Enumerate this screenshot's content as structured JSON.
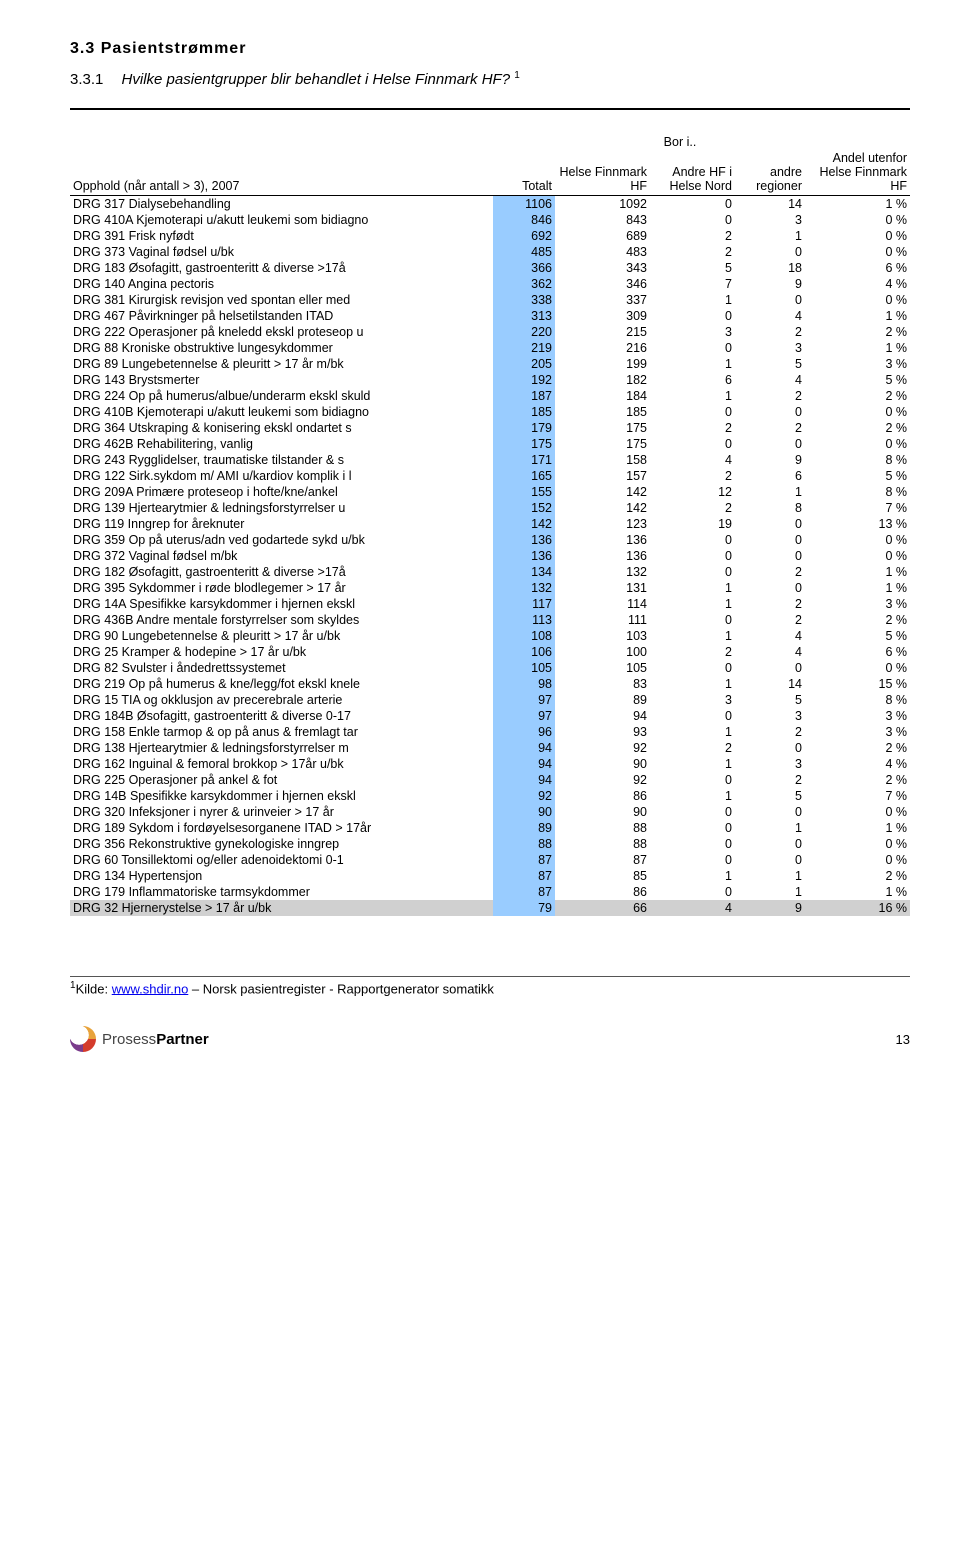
{
  "section_number": "3.3",
  "section_title": "Pasientstrømmer",
  "subsection_number": "3.3.1",
  "subsection_title": "Hvilke pasientgrupper blir behandlet i Helse Finnmark HF?",
  "subsection_footref": "1",
  "header": {
    "opphold": "Opphold (når antall > 3), 2007",
    "totalt": "Totalt",
    "bor_i": "Bor i..",
    "h1": "Helse Finnmark HF",
    "h2": "Andre HF i Helse Nord",
    "h3": "andre regioner",
    "andel": "Andel utenfor Helse Finnmark HF"
  },
  "rows": [
    {
      "label": "DRG 317 Dialysebehandling",
      "t": 1106,
      "a": 1092,
      "b": 0,
      "c": 14,
      "p": "1 %"
    },
    {
      "label": "DRG 410A Kjemoterapi u/akutt leukemi som bidiagno",
      "t": 846,
      "a": 843,
      "b": 0,
      "c": 3,
      "p": "0 %"
    },
    {
      "label": "DRG 391 Frisk nyfødt",
      "t": 692,
      "a": 689,
      "b": 2,
      "c": 1,
      "p": "0 %"
    },
    {
      "label": "DRG 373 Vaginal fødsel u/bk",
      "t": 485,
      "a": 483,
      "b": 2,
      "c": 0,
      "p": "0 %"
    },
    {
      "label": "DRG 183 Øsofagitt, gastroenteritt & diverse >17å",
      "t": 366,
      "a": 343,
      "b": 5,
      "c": 18,
      "p": "6 %"
    },
    {
      "label": "DRG 140 Angina pectoris",
      "t": 362,
      "a": 346,
      "b": 7,
      "c": 9,
      "p": "4 %"
    },
    {
      "label": "DRG 381 Kirurgisk revisjon ved spontan eller med",
      "t": 338,
      "a": 337,
      "b": 1,
      "c": 0,
      "p": "0 %"
    },
    {
      "label": "DRG 467 Påvirkninger på helsetilstanden ITAD",
      "t": 313,
      "a": 309,
      "b": 0,
      "c": 4,
      "p": "1 %"
    },
    {
      "label": "DRG 222 Operasjoner på kneledd ekskl proteseop u",
      "t": 220,
      "a": 215,
      "b": 3,
      "c": 2,
      "p": "2 %"
    },
    {
      "label": "DRG 88 Kroniske obstruktive lungesykdommer",
      "t": 219,
      "a": 216,
      "b": 0,
      "c": 3,
      "p": "1 %"
    },
    {
      "label": "DRG 89 Lungebetennelse & pleuritt > 17 år m/bk",
      "t": 205,
      "a": 199,
      "b": 1,
      "c": 5,
      "p": "3 %"
    },
    {
      "label": "DRG 143 Brystsmerter",
      "t": 192,
      "a": 182,
      "b": 6,
      "c": 4,
      "p": "5 %"
    },
    {
      "label": "DRG 224 Op på humerus/albue/underarm ekskl skuld",
      "t": 187,
      "a": 184,
      "b": 1,
      "c": 2,
      "p": "2 %"
    },
    {
      "label": "DRG 410B Kjemoterapi u/akutt leukemi som bidiagno",
      "t": 185,
      "a": 185,
      "b": 0,
      "c": 0,
      "p": "0 %"
    },
    {
      "label": "DRG 364 Utskraping & konisering ekskl ondartet s",
      "t": 179,
      "a": 175,
      "b": 2,
      "c": 2,
      "p": "2 %"
    },
    {
      "label": "DRG 462B Rehabilitering, vanlig",
      "t": 175,
      "a": 175,
      "b": 0,
      "c": 0,
      "p": "0 %"
    },
    {
      "label": "DRG 243 Rygglidelser, traumatiske tilstander & s",
      "t": 171,
      "a": 158,
      "b": 4,
      "c": 9,
      "p": "8 %"
    },
    {
      "label": "DRG 122 Sirk.sykdom m/ AMI u/kardiov komplik i l",
      "t": 165,
      "a": 157,
      "b": 2,
      "c": 6,
      "p": "5 %"
    },
    {
      "label": "DRG 209A Primære proteseop i hofte/kne/ankel",
      "t": 155,
      "a": 142,
      "b": 12,
      "c": 1,
      "p": "8 %"
    },
    {
      "label": "DRG 139 Hjertearytmier & ledningsforstyrrelser u",
      "t": 152,
      "a": 142,
      "b": 2,
      "c": 8,
      "p": "7 %"
    },
    {
      "label": "DRG 119 Inngrep for åreknuter",
      "t": 142,
      "a": 123,
      "b": 19,
      "c": 0,
      "p": "13 %"
    },
    {
      "label": "DRG 359 Op på uterus/adn ved godartede sykd u/bk",
      "t": 136,
      "a": 136,
      "b": 0,
      "c": 0,
      "p": "0 %"
    },
    {
      "label": "DRG 372 Vaginal fødsel m/bk",
      "t": 136,
      "a": 136,
      "b": 0,
      "c": 0,
      "p": "0 %"
    },
    {
      "label": "DRG 182 Øsofagitt, gastroenteritt & diverse >17å",
      "t": 134,
      "a": 132,
      "b": 0,
      "c": 2,
      "p": "1 %"
    },
    {
      "label": "DRG 395 Sykdommer i røde blodlegemer > 17 år",
      "t": 132,
      "a": 131,
      "b": 1,
      "c": 0,
      "p": "1 %"
    },
    {
      "label": "DRG 14A Spesifikke karsykdommer i hjernen ekskl",
      "t": 117,
      "a": 114,
      "b": 1,
      "c": 2,
      "p": "3 %"
    },
    {
      "label": "DRG 436B Andre mentale forstyrrelser som skyldes",
      "t": 113,
      "a": 111,
      "b": 0,
      "c": 2,
      "p": "2 %"
    },
    {
      "label": "DRG 90 Lungebetennelse & pleuritt > 17 år u/bk",
      "t": 108,
      "a": 103,
      "b": 1,
      "c": 4,
      "p": "5 %"
    },
    {
      "label": "DRG 25 Kramper & hodepine > 17 år u/bk",
      "t": 106,
      "a": 100,
      "b": 2,
      "c": 4,
      "p": "6 %"
    },
    {
      "label": "DRG 82 Svulster i åndedrettssystemet",
      "t": 105,
      "a": 105,
      "b": 0,
      "c": 0,
      "p": "0 %"
    },
    {
      "label": "DRG 219 Op på humerus & kne/legg/fot ekskl knele",
      "t": 98,
      "a": 83,
      "b": 1,
      "c": 14,
      "p": "15 %"
    },
    {
      "label": "DRG 15 TIA og okklusjon av precerebrale arterie",
      "t": 97,
      "a": 89,
      "b": 3,
      "c": 5,
      "p": "8 %"
    },
    {
      "label": "DRG 184B Øsofagitt, gastroenteritt & diverse 0-17",
      "t": 97,
      "a": 94,
      "b": 0,
      "c": 3,
      "p": "3 %"
    },
    {
      "label": "DRG 158 Enkle tarmop & op på anus & fremlagt tar",
      "t": 96,
      "a": 93,
      "b": 1,
      "c": 2,
      "p": "3 %"
    },
    {
      "label": "DRG 138 Hjertearytmier & ledningsforstyrrelser m",
      "t": 94,
      "a": 92,
      "b": 2,
      "c": 0,
      "p": "2 %"
    },
    {
      "label": "DRG 162 Inguinal & femoral brokkop > 17år u/bk",
      "t": 94,
      "a": 90,
      "b": 1,
      "c": 3,
      "p": "4 %"
    },
    {
      "label": "DRG 225 Operasjoner på ankel & fot",
      "t": 94,
      "a": 92,
      "b": 0,
      "c": 2,
      "p": "2 %"
    },
    {
      "label": "DRG 14B Spesifikke karsykdommer i hjernen ekskl",
      "t": 92,
      "a": 86,
      "b": 1,
      "c": 5,
      "p": "7 %"
    },
    {
      "label": "DRG 320 Infeksjoner i nyrer & urinveier > 17 år",
      "t": 90,
      "a": 90,
      "b": 0,
      "c": 0,
      "p": "0 %"
    },
    {
      "label": "DRG 189 Sykdom i fordøyelsesorganene ITAD > 17år",
      "t": 89,
      "a": 88,
      "b": 0,
      "c": 1,
      "p": "1 %"
    },
    {
      "label": "DRG 356 Rekonstruktive gynekologiske inngrep",
      "t": 88,
      "a": 88,
      "b": 0,
      "c": 0,
      "p": "0 %"
    },
    {
      "label": "DRG 60 Tonsillektomi og/eller adenoidektomi 0-1",
      "t": 87,
      "a": 87,
      "b": 0,
      "c": 0,
      "p": "0 %"
    },
    {
      "label": "DRG 134 Hypertensjon",
      "t": 87,
      "a": 85,
      "b": 1,
      "c": 1,
      "p": "2 %"
    },
    {
      "label": "DRG 179 Inflammatoriske tarmsykdommer",
      "t": 87,
      "a": 86,
      "b": 0,
      "c": 1,
      "p": "1 %"
    },
    {
      "label": "DRG 32 Hjernerystelse > 17 år u/bk",
      "t": 79,
      "a": 66,
      "b": 4,
      "c": 9,
      "p": "16 %",
      "last": true
    }
  ],
  "footnote": {
    "num": "1",
    "prefix": "Kilde: ",
    "link_text": "www.shdir.no",
    "suffix": " – Norsk pasientregister - Rapportgenerator somatikk"
  },
  "logo": {
    "brand1": "Prosess",
    "brand2": "Partner"
  },
  "page_number": "13"
}
